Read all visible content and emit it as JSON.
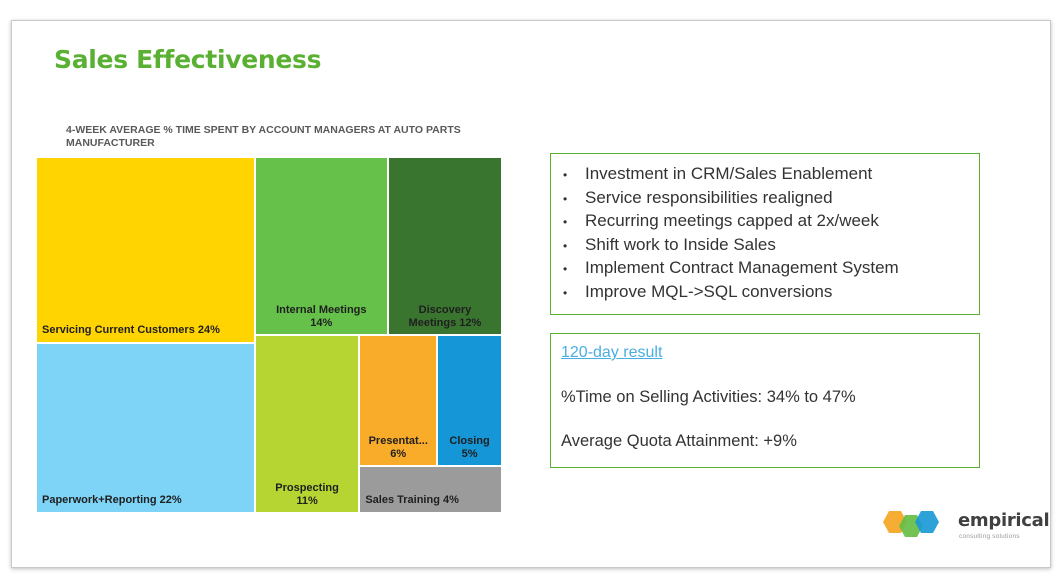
{
  "slide": {
    "title": "Sales Effectiveness",
    "title_color": "#5ab032"
  },
  "chart_data": {
    "type": "treemap",
    "title": "4-WEEK AVERAGE % TIME SPENT BY ACCOUNT MANAGERS AT AUTO PARTS MANUFACTURER",
    "items": [
      {
        "label": "Servicing Current Customers 24%",
        "value": 24,
        "color": "#ffd400"
      },
      {
        "label": "Paperwork+Reporting 22%",
        "value": 22,
        "color": "#7dd4f7"
      },
      {
        "label": "Internal Meetings\n14%",
        "value": 14,
        "color": "#66c14a"
      },
      {
        "label": "Discovery\nMeetings 12%",
        "value": 12,
        "color": "#3a7530"
      },
      {
        "label": "Prospecting\n11%",
        "value": 11,
        "color": "#b6d532"
      },
      {
        "label": "Presentat...\n6%",
        "value": 6,
        "color": "#f9ac2a"
      },
      {
        "label": "Closing\n5%",
        "value": 5,
        "color": "#1596d6"
      },
      {
        "label": "Sales Training 4%",
        "value": 4,
        "color": "#9b9b9b"
      }
    ]
  },
  "bullets": [
    "Investment in CRM/Sales Enablement",
    "Service responsibilities realigned",
    "Recurring meetings capped at 2x/week",
    "Shift work to Inside Sales",
    "Implement Contract Management System",
    "Improve MQL->SQL conversions"
  ],
  "result": {
    "link_text": "120-day result",
    "time_line": "%Time on Selling Activities:  34% to 47%",
    "quota_line": "Average Quota Attainment:  +9%"
  },
  "logo": {
    "name": "empirical",
    "tagline": "consulting solutions",
    "icon": "hexagon-cluster-icon",
    "colors": [
      "#f5a623",
      "#66bd45",
      "#1a9ad6"
    ]
  }
}
